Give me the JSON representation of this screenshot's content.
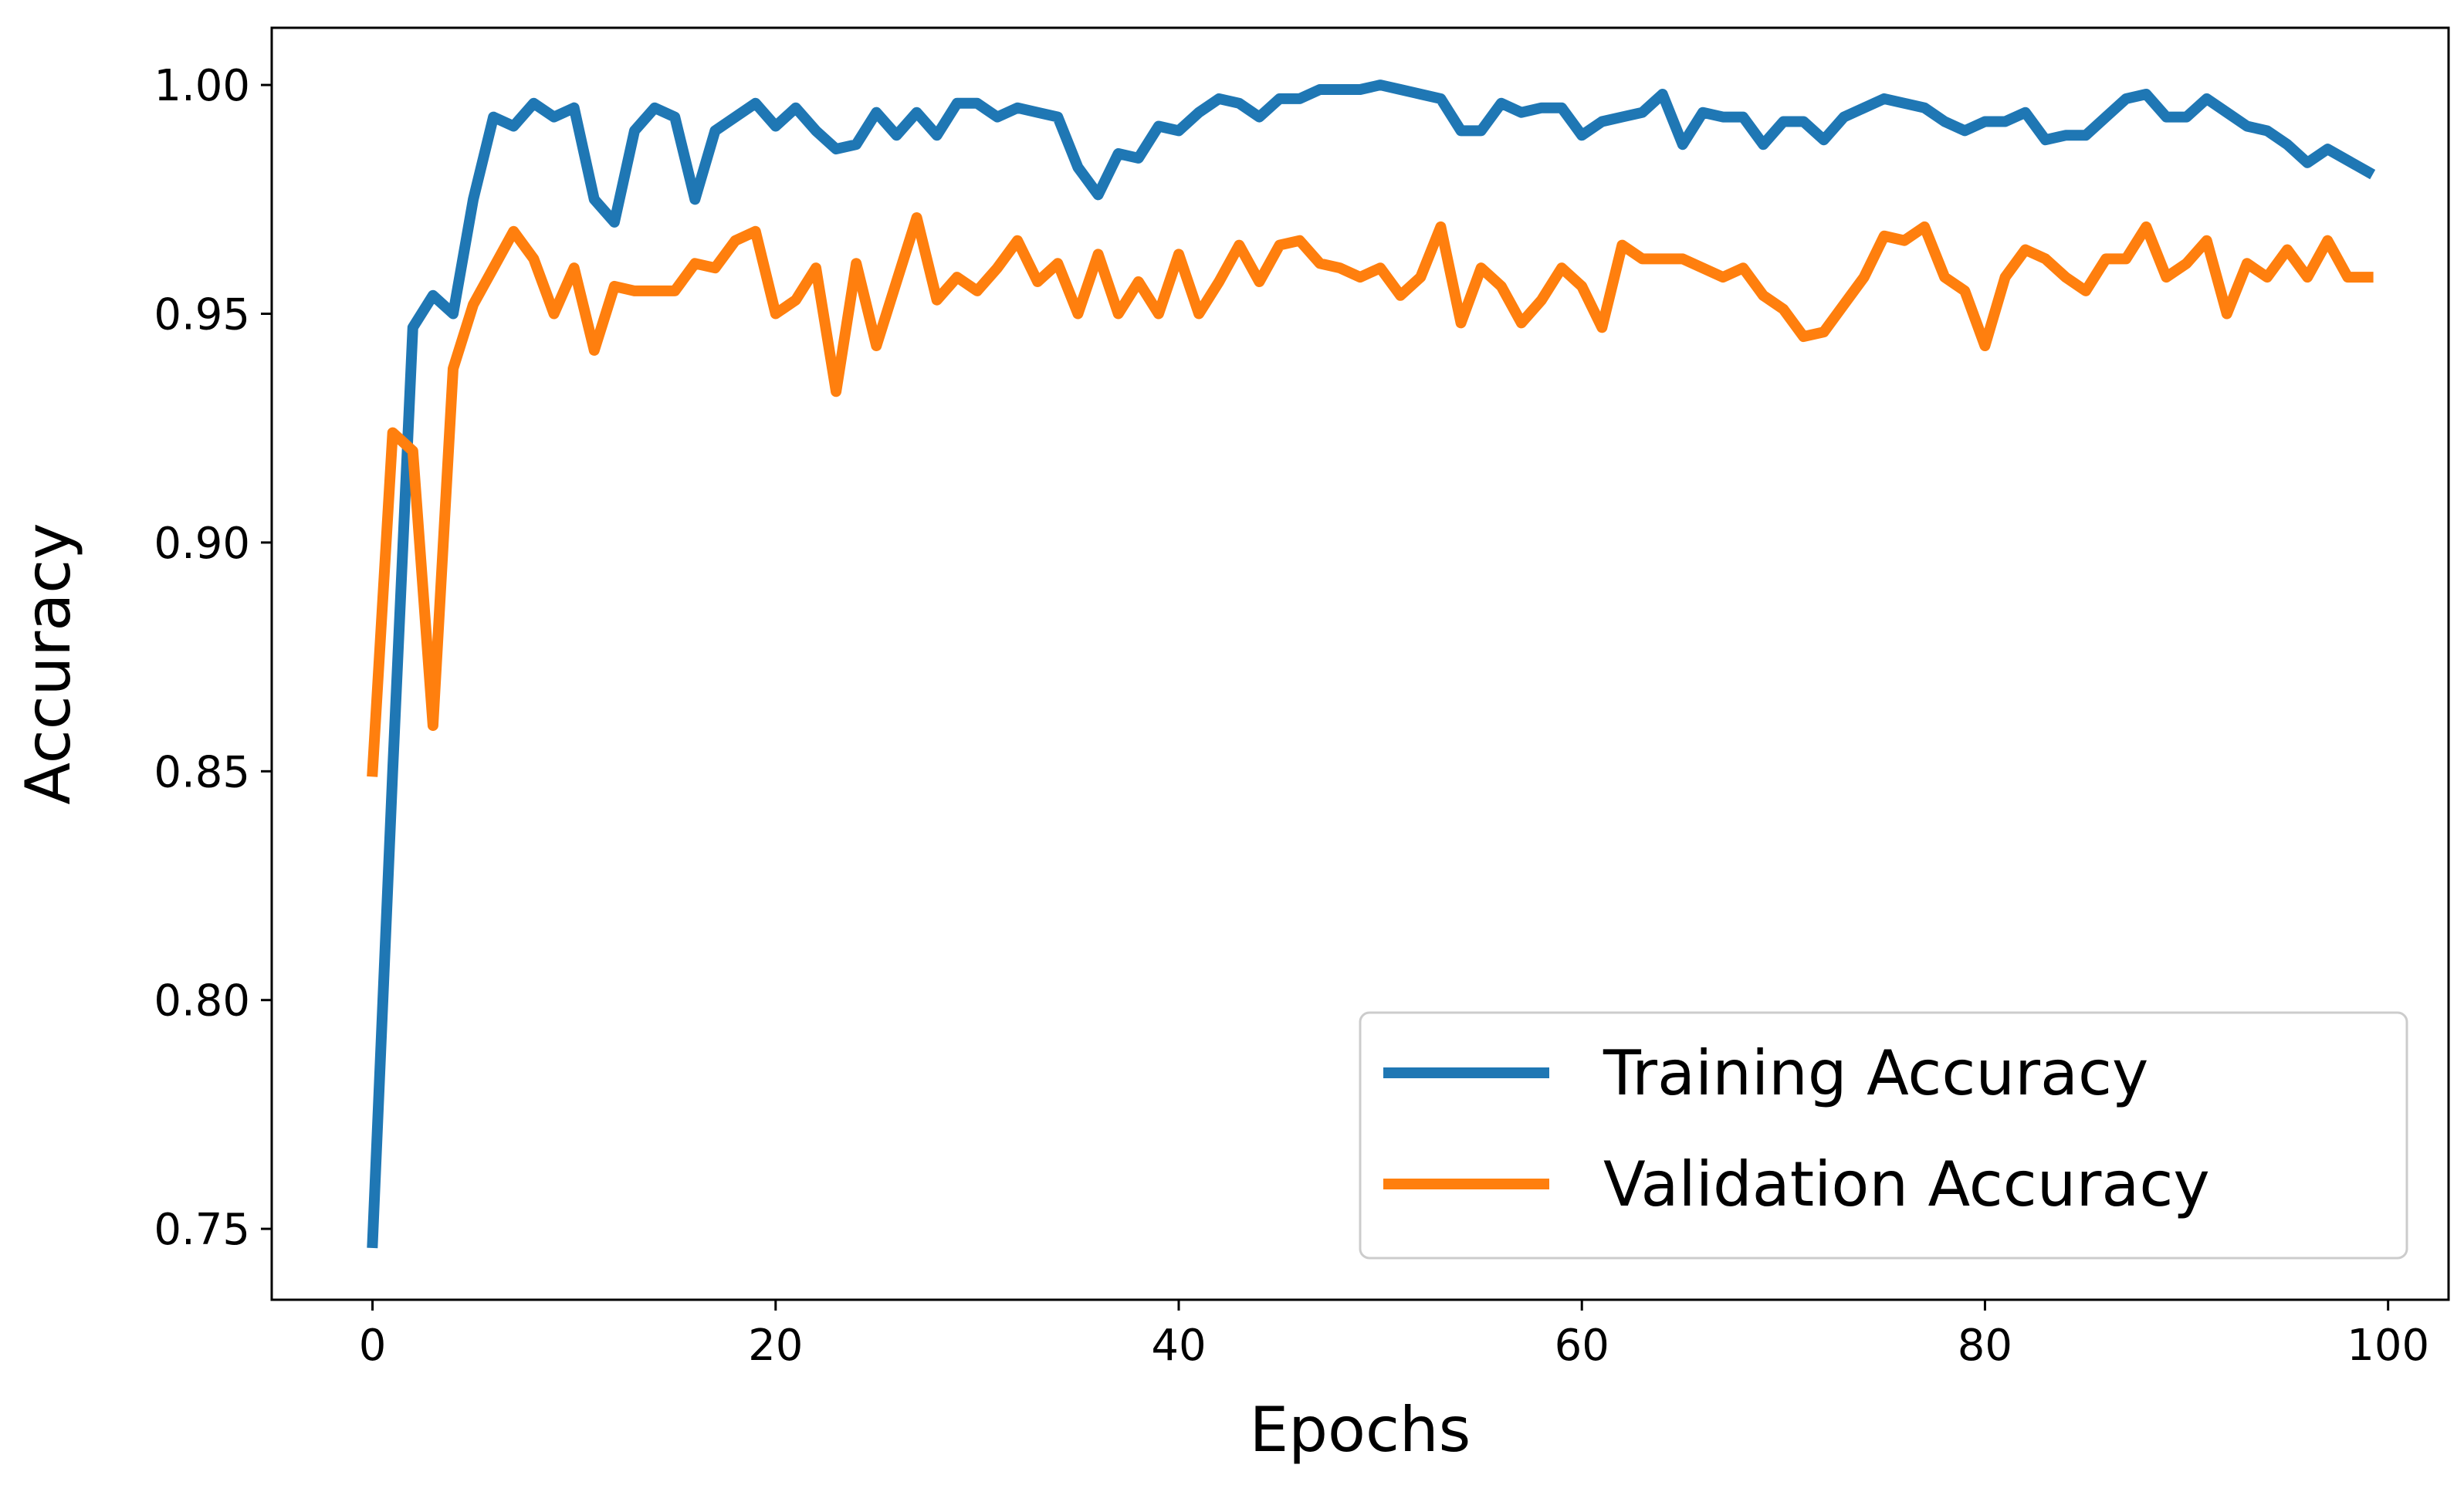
{
  "chart_data": {
    "type": "line",
    "title": "",
    "xlabel": "Epochs",
    "ylabel": "Accuracy",
    "xlim": [
      -5,
      103
    ],
    "ylim": [
      0.7345,
      1.0125
    ],
    "xticks": [
      0,
      20,
      40,
      60,
      80,
      100
    ],
    "yticks": [
      0.75,
      0.8,
      0.85,
      0.9,
      0.95,
      1.0
    ],
    "xtick_labels": [
      "0",
      "20",
      "40",
      "60",
      "80",
      "100"
    ],
    "ytick_labels": [
      "0.75",
      "0.80",
      "0.85",
      "0.90",
      "0.95",
      "1.00"
    ],
    "grid": false,
    "legend_position": "lower-right",
    "series": [
      {
        "name": "Training Accuracy",
        "color": "#1f77b4",
        "values": [
          0.747,
          0.85,
          0.947,
          0.954,
          0.95,
          0.975,
          0.993,
          0.991,
          0.996,
          0.993,
          0.995,
          0.975,
          0.97,
          0.99,
          0.995,
          0.993,
          0.975,
          0.99,
          0.993,
          0.996,
          0.991,
          0.995,
          0.99,
          0.986,
          0.987,
          0.994,
          0.989,
          0.994,
          0.989,
          0.996,
          0.996,
          0.993,
          0.995,
          0.994,
          0.993,
          0.982,
          0.976,
          0.985,
          0.984,
          0.991,
          0.99,
          0.994,
          0.997,
          0.996,
          0.993,
          0.997,
          0.997,
          0.999,
          0.999,
          0.999,
          1.0,
          0.999,
          0.998,
          0.997,
          0.99,
          0.99,
          0.996,
          0.994,
          0.995,
          0.995,
          0.989,
          0.992,
          0.993,
          0.994,
          0.998,
          0.987,
          0.994,
          0.993,
          0.993,
          0.987,
          0.992,
          0.992,
          0.988,
          0.993,
          0.995,
          0.997,
          0.996,
          0.995,
          0.992,
          0.99,
          0.992,
          0.992,
          0.994,
          0.988,
          0.989,
          0.989,
          0.993,
          0.997,
          0.998,
          0.993,
          0.993,
          0.997,
          0.994,
          0.991,
          0.99,
          0.987,
          0.983,
          0.986,
          0.981
        ],
        "x": [
          0,
          1,
          2,
          3,
          4,
          5,
          6,
          7,
          8,
          9,
          10,
          11,
          12,
          13,
          14,
          15,
          16,
          17,
          18,
          19,
          20,
          21,
          22,
          23,
          24,
          25,
          26,
          27,
          28,
          29,
          30,
          31,
          32,
          33,
          34,
          35,
          36,
          37,
          38,
          39,
          40,
          41,
          42,
          43,
          44,
          45,
          46,
          47,
          48,
          49,
          50,
          51,
          52,
          53,
          54,
          55,
          56,
          57,
          58,
          59,
          60,
          61,
          62,
          63,
          64,
          65,
          66,
          67,
          68,
          69,
          70,
          71,
          72,
          73,
          74,
          75,
          76,
          77,
          78,
          79,
          80,
          81,
          82,
          83,
          84,
          85,
          86,
          87,
          88,
          89,
          90,
          91,
          92,
          93,
          94,
          95,
          96,
          97,
          99
        ]
      },
      {
        "name": "Validation Accuracy",
        "color": "#ff7f0e",
        "values": [
          0.85,
          0.924,
          0.92,
          0.86,
          0.938,
          0.952,
          0.96,
          0.968,
          0.962,
          0.95,
          0.96,
          0.942,
          0.956,
          0.955,
          0.955,
          0.955,
          0.961,
          0.96,
          0.966,
          0.968,
          0.95,
          0.953,
          0.96,
          0.933,
          0.961,
          0.943,
          0.957,
          0.971,
          0.953,
          0.958,
          0.955,
          0.96,
          0.966,
          0.957,
          0.961,
          0.95,
          0.963,
          0.95,
          0.957,
          0.95,
          0.963,
          0.95,
          0.957,
          0.965,
          0.957,
          0.965,
          0.966,
          0.961,
          0.96,
          0.958,
          0.96,
          0.954,
          0.958,
          0.969,
          0.948,
          0.96,
          0.956,
          0.948,
          0.953,
          0.96,
          0.956,
          0.947,
          0.965,
          0.962,
          0.962,
          0.962,
          0.96,
          0.958,
          0.96,
          0.954,
          0.951,
          0.945,
          0.946,
          0.952,
          0.958,
          0.967,
          0.966,
          0.969,
          0.958,
          0.955,
          0.943,
          0.958,
          0.964,
          0.962,
          0.958,
          0.955,
          0.962,
          0.962,
          0.969,
          0.958,
          0.961,
          0.966,
          0.95,
          0.961,
          0.958,
          0.964,
          0.958,
          0.966,
          0.958,
          0.958
        ],
        "x": [
          0,
          1,
          2,
          3,
          4,
          5,
          6,
          7,
          8,
          9,
          10,
          11,
          12,
          13,
          14,
          15,
          16,
          17,
          18,
          19,
          20,
          21,
          22,
          23,
          24,
          25,
          26,
          27,
          28,
          29,
          30,
          31,
          32,
          33,
          34,
          35,
          36,
          37,
          38,
          39,
          40,
          41,
          42,
          43,
          44,
          45,
          46,
          47,
          48,
          49,
          50,
          51,
          52,
          53,
          54,
          55,
          56,
          57,
          58,
          59,
          60,
          61,
          62,
          63,
          64,
          65,
          66,
          67,
          68,
          69,
          70,
          71,
          72,
          73,
          74,
          75,
          76,
          77,
          78,
          79,
          80,
          81,
          82,
          83,
          84,
          85,
          86,
          87,
          88,
          89,
          90,
          91,
          92,
          93,
          94,
          95,
          96,
          97,
          98,
          99
        ]
      }
    ]
  }
}
